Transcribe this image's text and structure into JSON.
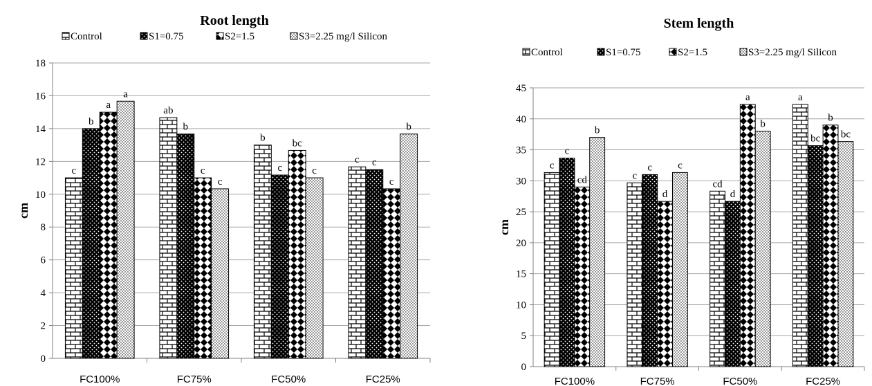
{
  "chart_data": [
    {
      "type": "bar",
      "title": "Root length",
      "ylabel": "cm",
      "xlabel": "",
      "ylim": [
        0,
        18
      ],
      "ytick_step": 2,
      "grid": true,
      "legend_position": "top",
      "categories": [
        "FC100%",
        "FC75%",
        "FC50%",
        "FC25%"
      ],
      "series": [
        {
          "name": "Control",
          "values": [
            11.0,
            14.67,
            13.0,
            11.67
          ],
          "labels": [
            "c",
            "ab",
            "b",
            "c"
          ]
        },
        {
          "name": "S1=0.75",
          "values": [
            14.0,
            13.67,
            11.17,
            11.5
          ],
          "labels": [
            "b",
            "b",
            "c",
            "c"
          ]
        },
        {
          "name": "S2=1.5",
          "values": [
            15.0,
            11.0,
            12.67,
            10.33
          ],
          "labels": [
            "a",
            "c",
            "bc",
            "c"
          ]
        },
        {
          "name": "S3=2.25 mg/l  Silicon",
          "values": [
            15.67,
            10.33,
            11.0,
            13.67
          ],
          "labels": [
            "a",
            "c",
            "c",
            "b"
          ]
        }
      ]
    },
    {
      "type": "bar",
      "title": "Stem length",
      "ylabel": "cm",
      "xlabel": "",
      "ylim": [
        0,
        45
      ],
      "ytick_step": 5,
      "grid": true,
      "legend_position": "top",
      "categories": [
        "FC100%",
        "FC75%",
        "FC50%",
        "FC25%"
      ],
      "series": [
        {
          "name": "Control",
          "values": [
            31.33,
            29.67,
            28.33,
            42.33
          ],
          "labels": [
            "c",
            "c",
            "cd",
            "a"
          ]
        },
        {
          "name": "S1=0.75",
          "values": [
            33.67,
            31.0,
            26.67,
            35.67
          ],
          "labels": [
            "c",
            "c",
            "d",
            "bc"
          ]
        },
        {
          "name": "S2=1.5",
          "values": [
            29.0,
            26.67,
            42.33,
            39.0
          ],
          "labels": [
            "cd",
            "d",
            "a",
            "b"
          ]
        },
        {
          "name": "S3=2.25 mg/l  Silicon",
          "values": [
            37.0,
            31.33,
            38.0,
            36.33
          ],
          "labels": [
            "b",
            "c",
            "b",
            "bc"
          ]
        }
      ]
    }
  ]
}
